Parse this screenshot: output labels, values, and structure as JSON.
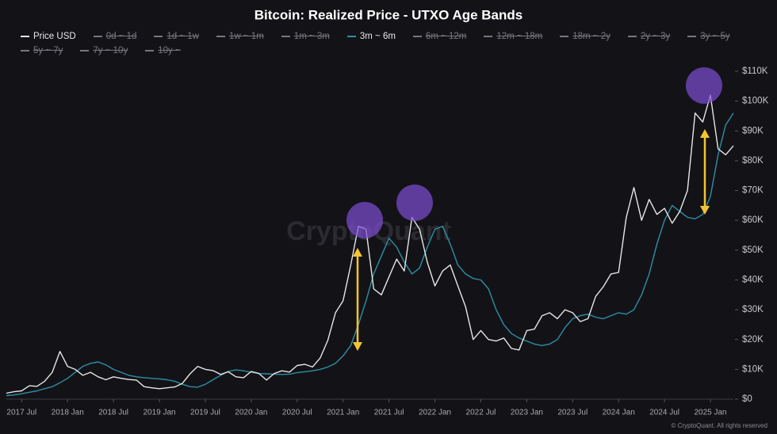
{
  "chart_data": {
    "type": "line",
    "title": "Bitcoin: Realized Price - UTXO Age Bands",
    "watermark": "CryptoQuant",
    "footer": "© CryptoQuant. All rights reserved",
    "x": [
      "2017-05",
      "2017-06",
      "2017-07",
      "2017-08",
      "2017-09",
      "2017-10",
      "2017-11",
      "2017-12",
      "2018-01",
      "2018-02",
      "2018-03",
      "2018-04",
      "2018-05",
      "2018-06",
      "2018-07",
      "2018-08",
      "2018-09",
      "2018-10",
      "2018-11",
      "2018-12",
      "2019-01",
      "2019-02",
      "2019-03",
      "2019-04",
      "2019-05",
      "2019-06",
      "2019-07",
      "2019-08",
      "2019-09",
      "2019-10",
      "2019-11",
      "2019-12",
      "2020-01",
      "2020-02",
      "2020-03",
      "2020-04",
      "2020-05",
      "2020-06",
      "2020-07",
      "2020-08",
      "2020-09",
      "2020-10",
      "2020-11",
      "2020-12",
      "2021-01",
      "2021-02",
      "2021-03",
      "2021-04",
      "2021-05",
      "2021-06",
      "2021-07",
      "2021-08",
      "2021-09",
      "2021-10",
      "2021-11",
      "2021-12",
      "2022-01",
      "2022-02",
      "2022-03",
      "2022-04",
      "2022-05",
      "2022-06",
      "2022-07",
      "2022-08",
      "2022-09",
      "2022-10",
      "2022-11",
      "2022-12",
      "2023-01",
      "2023-02",
      "2023-03",
      "2023-04",
      "2023-05",
      "2023-06",
      "2023-07",
      "2023-08",
      "2023-09",
      "2023-10",
      "2023-11",
      "2023-12",
      "2024-01",
      "2024-02",
      "2024-03",
      "2024-04",
      "2024-05",
      "2024-06",
      "2024-07",
      "2024-08",
      "2024-09",
      "2024-10",
      "2024-11",
      "2024-12",
      "2025-01",
      "2025-02",
      "2025-03",
      "2025-04"
    ],
    "series": [
      {
        "name": "Price USD",
        "color": "#e6e6e6",
        "visible": true,
        "values": [
          2000,
          2500,
          2800,
          4500,
          4300,
          6000,
          9000,
          16000,
          11000,
          10000,
          8000,
          9000,
          7500,
          6500,
          7500,
          7000,
          6600,
          6400,
          4200,
          3800,
          3500,
          3800,
          4100,
          5300,
          8500,
          11000,
          10000,
          9600,
          8300,
          9200,
          7500,
          7200,
          9300,
          8600,
          6400,
          8600,
          9500,
          9100,
          11300,
          11700,
          10800,
          13800,
          19700,
          29000,
          33000,
          45000,
          58000,
          57000,
          37000,
          35000,
          41000,
          47000,
          43000,
          61000,
          57000,
          46000,
          38000,
          43000,
          45000,
          38000,
          31000,
          20000,
          23000,
          20000,
          19500,
          20500,
          17000,
          16500,
          23000,
          23500,
          28000,
          29000,
          27000,
          30000,
          29000,
          26000,
          27000,
          34500,
          37700,
          42000,
          42500,
          61000,
          71000,
          60000,
          67000,
          62000,
          64000,
          59000,
          63000,
          70000,
          96000,
          93000,
          102000,
          84000,
          82000,
          85000
        ]
      },
      {
        "name": "0d ~ 1d",
        "color": "#77777e",
        "visible": false
      },
      {
        "name": "1d ~ 1w",
        "color": "#77777e",
        "visible": false
      },
      {
        "name": "1w ~ 1m",
        "color": "#77777e",
        "visible": false
      },
      {
        "name": "1m ~ 3m",
        "color": "#77777e",
        "visible": false
      },
      {
        "name": "3m ~ 6m",
        "color": "#2e8ea6",
        "visible": true,
        "values": [
          1200,
          1400,
          1800,
          2300,
          2800,
          3500,
          4200,
          5500,
          7000,
          9000,
          11000,
          12000,
          12500,
          11500,
          10000,
          9000,
          8000,
          7500,
          7200,
          7000,
          6800,
          6500,
          6000,
          5000,
          4200,
          4000,
          5000,
          6500,
          8000,
          9300,
          9800,
          9500,
          9000,
          8600,
          8500,
          8400,
          8300,
          8400,
          8900,
          9200,
          9500,
          10000,
          10800,
          12000,
          14500,
          18000,
          25000,
          33000,
          42000,
          48000,
          54000,
          51000,
          46000,
          42000,
          44000,
          51000,
          57000,
          58000,
          52000,
          45000,
          42000,
          40500,
          40000,
          37000,
          30000,
          25000,
          22000,
          20500,
          19500,
          18500,
          18000,
          18500,
          20000,
          24000,
          27000,
          28000,
          28500,
          27500,
          27000,
          28000,
          29000,
          28500,
          30000,
          35000,
          42000,
          52000,
          60000,
          65000,
          63000,
          61000,
          60500,
          62000,
          68000,
          82000,
          92000,
          96000
        ]
      },
      {
        "name": "6m ~ 12m",
        "color": "#77777e",
        "visible": false
      },
      {
        "name": "12m ~ 18m",
        "color": "#77777e",
        "visible": false
      },
      {
        "name": "18m ~ 2y",
        "color": "#77777e",
        "visible": false
      },
      {
        "name": "2y ~ 3y",
        "color": "#77777e",
        "visible": false
      },
      {
        "name": "3y ~ 5y",
        "color": "#77777e",
        "visible": false
      },
      {
        "name": "5y ~ 7y",
        "color": "#77777e",
        "visible": false
      },
      {
        "name": "7y ~ 10y",
        "color": "#77777e",
        "visible": false
      },
      {
        "name": "10y ~",
        "color": "#77777e",
        "visible": false
      }
    ],
    "xlim": [
      "2017-05",
      "2025-04"
    ],
    "xticks": [
      {
        "value": "2017-07",
        "label": "2017 Jul"
      },
      {
        "value": "2018-01",
        "label": "2018 Jan"
      },
      {
        "value": "2018-07",
        "label": "2018 Jul"
      },
      {
        "value": "2019-01",
        "label": "2019 Jan"
      },
      {
        "value": "2019-07",
        "label": "2019 Jul"
      },
      {
        "value": "2020-01",
        "label": "2020 Jan"
      },
      {
        "value": "2020-07",
        "label": "2020 Jul"
      },
      {
        "value": "2021-01",
        "label": "2021 Jan"
      },
      {
        "value": "2021-07",
        "label": "2021 Jul"
      },
      {
        "value": "2022-01",
        "label": "2022 Jan"
      },
      {
        "value": "2022-07",
        "label": "2022 Jul"
      },
      {
        "value": "2023-01",
        "label": "2023 Jan"
      },
      {
        "value": "2023-07",
        "label": "2023 Jul"
      },
      {
        "value": "2024-01",
        "label": "2024 Jan"
      },
      {
        "value": "2024-07",
        "label": "2024 Jul"
      },
      {
        "value": "2025-01",
        "label": "2025 Jan"
      }
    ],
    "ylim": [
      0,
      110000
    ],
    "yticks": [
      {
        "value": 0,
        "label": "$0"
      },
      {
        "value": 10000,
        "label": "$10K"
      },
      {
        "value": 20000,
        "label": "$20K"
      },
      {
        "value": 30000,
        "label": "$30K"
      },
      {
        "value": 40000,
        "label": "$40K"
      },
      {
        "value": 50000,
        "label": "$50K"
      },
      {
        "value": 60000,
        "label": "$60K"
      },
      {
        "value": 70000,
        "label": "$70K"
      },
      {
        "value": 80000,
        "label": "$80K"
      },
      {
        "value": 90000,
        "label": "$90K"
      },
      {
        "value": 100000,
        "label": "$100K"
      },
      {
        "value": 110000,
        "label": "$110K"
      }
    ]
  }
}
